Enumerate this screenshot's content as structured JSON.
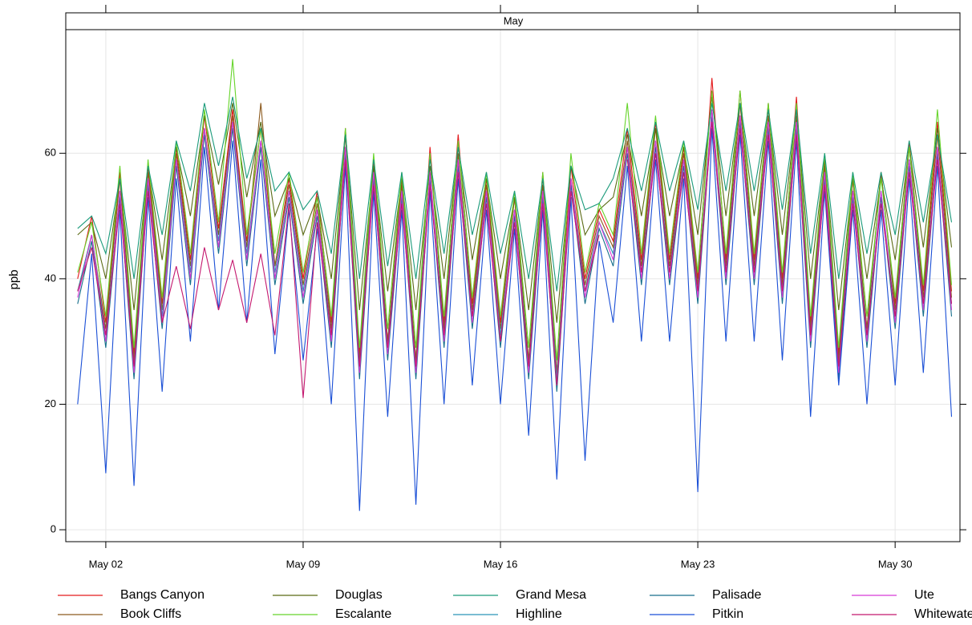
{
  "chart_data": {
    "type": "line",
    "strip_label": "May",
    "ylabel": "ppb",
    "x": [
      1,
      1.5,
      2,
      2.5,
      3,
      3.5,
      4,
      4.5,
      5,
      5.5,
      6,
      6.5,
      7,
      7.5,
      8,
      8.5,
      9,
      9.5,
      10,
      10.5,
      11,
      11.5,
      12,
      12.5,
      13,
      13.5,
      14,
      14.5,
      15,
      15.5,
      16,
      16.5,
      17,
      17.5,
      18,
      18.5,
      19,
      19.5,
      20,
      20.5,
      21,
      21.5,
      22,
      22.5,
      23,
      23.5,
      24,
      24.5,
      25,
      25.5,
      26,
      26.5,
      27,
      27.5,
      28,
      28.5,
      29,
      29.5,
      30,
      30.5,
      31,
      31.5,
      32
    ],
    "xlim": [
      0.58,
      32.3
    ],
    "xticks": [
      {
        "value": 2,
        "label": "May 02"
      },
      {
        "value": 9,
        "label": "May 09"
      },
      {
        "value": 16,
        "label": "May 16"
      },
      {
        "value": 23,
        "label": "May 23"
      },
      {
        "value": 30,
        "label": "May 30"
      }
    ],
    "ylim": [
      -1.9,
      79.7
    ],
    "yticks": [
      0,
      20,
      40,
      60
    ],
    "grid": true,
    "series": [
      {
        "name": "Bangs Canyon",
        "color": "#e31a1c",
        "values": [
          40,
          50,
          33,
          57,
          28,
          58,
          36,
          61,
          43,
          66,
          48,
          67,
          46,
          64,
          42,
          56,
          40,
          54,
          33,
          64,
          28,
          59,
          30,
          56,
          27,
          61,
          33,
          63,
          36,
          56,
          33,
          53,
          27,
          57,
          25,
          58,
          40,
          51,
          46,
          64,
          43,
          65,
          43,
          61,
          40,
          72,
          43,
          70,
          43,
          68,
          40,
          69,
          33,
          59,
          28,
          56,
          32,
          57,
          36,
          62,
          38,
          65,
          38
        ]
      },
      {
        "name": "Book Cliffs",
        "color": "#8c5a1e",
        "values": [
          38,
          47,
          32,
          56,
          27,
          57,
          35,
          60,
          42,
          64,
          47,
          66,
          45,
          68,
          42,
          55,
          39,
          52,
          32,
          63,
          27,
          58,
          30,
          55,
          27,
          60,
          32,
          60,
          35,
          55,
          32,
          53,
          27,
          55,
          25,
          56,
          39,
          50,
          45,
          62,
          42,
          64,
          42,
          60,
          39,
          67,
          42,
          68,
          42,
          66,
          39,
          66,
          32,
          58,
          27,
          56,
          32,
          57,
          35,
          61,
          37,
          63,
          37
        ]
      },
      {
        "name": "Douglas",
        "color": "#5a6a14",
        "values": [
          47,
          49,
          40,
          56,
          35,
          58,
          43,
          61,
          50,
          66,
          55,
          68,
          53,
          65,
          50,
          56,
          47,
          53,
          40,
          63,
          35,
          58,
          38,
          56,
          35,
          58,
          40,
          61,
          43,
          56,
          40,
          53,
          35,
          56,
          33,
          58,
          47,
          51,
          53,
          63,
          50,
          64,
          50,
          61,
          47,
          69,
          50,
          68,
          50,
          67,
          47,
          67,
          40,
          59,
          35,
          56,
          40,
          56,
          43,
          61,
          45,
          64,
          45
        ]
      },
      {
        "name": "Escalante",
        "color": "#66d42a",
        "values": [
          41,
          49,
          34,
          58,
          29,
          59,
          37,
          62,
          44,
          67,
          49,
          75,
          47,
          64,
          44,
          57,
          41,
          53,
          34,
          64,
          29,
          60,
          32,
          57,
          29,
          60,
          34,
          62,
          37,
          57,
          34,
          54,
          29,
          57,
          27,
          60,
          41,
          52,
          47,
          68,
          44,
          66,
          44,
          62,
          41,
          70,
          44,
          70,
          44,
          68,
          41,
          68,
          34,
          60,
          29,
          57,
          34,
          56,
          37,
          61,
          39,
          67,
          39
        ]
      },
      {
        "name": "Grand Mesa",
        "color": "#1a9a7a",
        "values": [
          48,
          50,
          44,
          56,
          40,
          58,
          47,
          62,
          54,
          68,
          58,
          69,
          56,
          64,
          54,
          57,
          51,
          54,
          44,
          63,
          40,
          59,
          42,
          57,
          40,
          59,
          44,
          61,
          47,
          57,
          44,
          54,
          40,
          56,
          38,
          58,
          51,
          52,
          56,
          64,
          54,
          65,
          54,
          62,
          51,
          68,
          54,
          68,
          54,
          67,
          51,
          67,
          44,
          60,
          40,
          57,
          44,
          57,
          47,
          62,
          49,
          63,
          49
        ]
      },
      {
        "name": "Highline",
        "color": "#2a95b8",
        "values": [
          38,
          47,
          31,
          54,
          26,
          56,
          34,
          59,
          41,
          64,
          46,
          65,
          44,
          62,
          41,
          54,
          38,
          51,
          31,
          61,
          26,
          57,
          29,
          54,
          26,
          57,
          31,
          59,
          34,
          54,
          31,
          51,
          26,
          54,
          24,
          56,
          38,
          49,
          44,
          61,
          41,
          62,
          41,
          59,
          38,
          67,
          41,
          66,
          41,
          65,
          38,
          65,
          31,
          57,
          26,
          54,
          31,
          54,
          34,
          59,
          36,
          61,
          36
        ]
      },
      {
        "name": "Palisade",
        "color": "#176f8c",
        "values": [
          36,
          46,
          29,
          53,
          24,
          55,
          32,
          58,
          39,
          63,
          44,
          64,
          42,
          61,
          39,
          53,
          36,
          50,
          29,
          60,
          24,
          56,
          27,
          53,
          24,
          56,
          29,
          58,
          32,
          53,
          29,
          50,
          24,
          53,
          22,
          55,
          36,
          48,
          42,
          60,
          39,
          61,
          39,
          58,
          36,
          66,
          39,
          65,
          39,
          64,
          36,
          64,
          29,
          56,
          24,
          53,
          29,
          53,
          32,
          58,
          34,
          60,
          34
        ]
      },
      {
        "name": "Pitkin",
        "color": "#1a4fd6",
        "values": [
          20,
          44,
          9,
          51,
          7,
          53,
          22,
          56,
          30,
          61,
          35,
          62,
          33,
          59,
          28,
          51,
          27,
          48,
          20,
          58,
          3,
          54,
          18,
          51,
          4,
          54,
          20,
          56,
          23,
          51,
          20,
          48,
          15,
          51,
          8,
          53,
          11,
          46,
          33,
          58,
          30,
          59,
          30,
          56,
          6,
          64,
          30,
          63,
          30,
          62,
          27,
          62,
          18,
          54,
          23,
          51,
          20,
          51,
          23,
          56,
          25,
          58,
          18
        ]
      },
      {
        "name": "Ute",
        "color": "#d63ad6",
        "values": [
          37,
          47,
          30,
          54,
          25,
          56,
          33,
          59,
          40,
          64,
          45,
          65,
          43,
          62,
          40,
          54,
          37,
          51,
          30,
          61,
          25,
          57,
          28,
          54,
          25,
          57,
          30,
          59,
          33,
          54,
          30,
          51,
          25,
          54,
          23,
          56,
          37,
          49,
          43,
          61,
          40,
          62,
          40,
          59,
          37,
          67,
          40,
          66,
          40,
          65,
          37,
          65,
          30,
          57,
          25,
          54,
          30,
          54,
          33,
          59,
          35,
          61,
          35
        ]
      },
      {
        "name": "Whitewater",
        "color": "#c4176e",
        "values": [
          38,
          45,
          31,
          52,
          26,
          54,
          33,
          42,
          32,
          45,
          35,
          43,
          33,
          44,
          31,
          52,
          21,
          49,
          31,
          59,
          26,
          55,
          29,
          52,
          26,
          55,
          31,
          57,
          34,
          52,
          30,
          49,
          26,
          52,
          23,
          54,
          38,
          47,
          null,
          59,
          41,
          60,
          41,
          57,
          38,
          65,
          41,
          64,
          41,
          63,
          38,
          63,
          31,
          55,
          26,
          52,
          31,
          52,
          34,
          57,
          36,
          59,
          36
        ]
      }
    ]
  }
}
